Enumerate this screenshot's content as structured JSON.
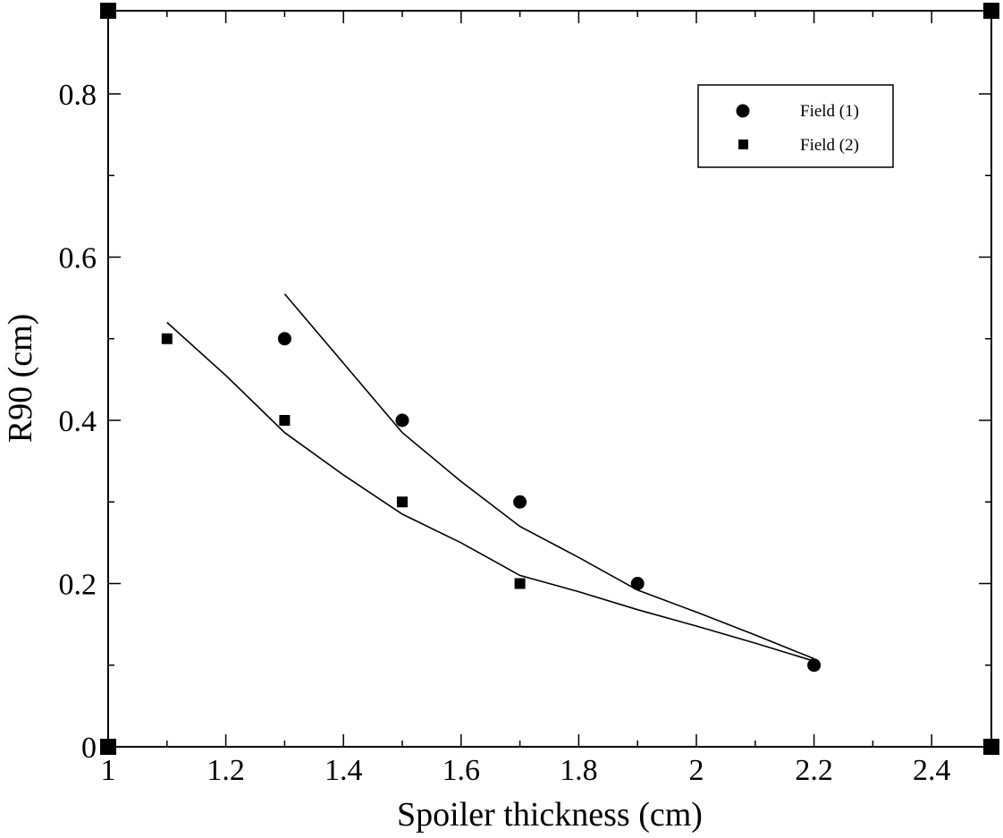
{
  "chart_data": {
    "type": "scatter",
    "xlabel": "Spoiler thickness (cm)",
    "ylabel": "R90 (cm)",
    "xlim": [
      1,
      2.5
    ],
    "ylim": [
      0,
      0.9
    ],
    "x_ticks": [
      "1",
      "1.2",
      "1.4",
      "1.6",
      "1.8",
      "2",
      "2.2",
      "2.4"
    ],
    "y_ticks": [
      "0",
      "0.2",
      "0.4",
      "0.6",
      "0.8"
    ],
    "grid": false,
    "legend_position": "top-right",
    "series": [
      {
        "name": "Field (1)",
        "marker": "circle",
        "x": [
          1.3,
          1.5,
          1.7,
          1.9,
          2.2
        ],
        "y": [
          0.5,
          0.4,
          0.3,
          0.2,
          0.1
        ],
        "fit": {
          "x": [
            1.3,
            1.4,
            1.5,
            1.6,
            1.7,
            1.8,
            1.9,
            2.0,
            2.1,
            2.2
          ],
          "y": [
            0.555,
            0.47,
            0.385,
            0.325,
            0.27,
            0.232,
            0.192,
            0.165,
            0.137,
            0.108
          ]
        }
      },
      {
        "name": "Field (2)",
        "marker": "square",
        "x": [
          1.1,
          1.3,
          1.5,
          1.7
        ],
        "y": [
          0.5,
          0.4,
          0.3,
          0.2
        ],
        "fit": {
          "x": [
            1.1,
            1.2,
            1.3,
            1.4,
            1.5,
            1.6,
            1.7,
            1.8,
            1.9,
            2.0,
            2.1,
            2.2
          ],
          "y": [
            0.52,
            0.455,
            0.385,
            0.333,
            0.285,
            0.25,
            0.21,
            0.19,
            0.168,
            0.148,
            0.127,
            0.105
          ]
        }
      }
    ],
    "colors": {
      "marks": "#000000",
      "background": "#ffffff"
    }
  }
}
